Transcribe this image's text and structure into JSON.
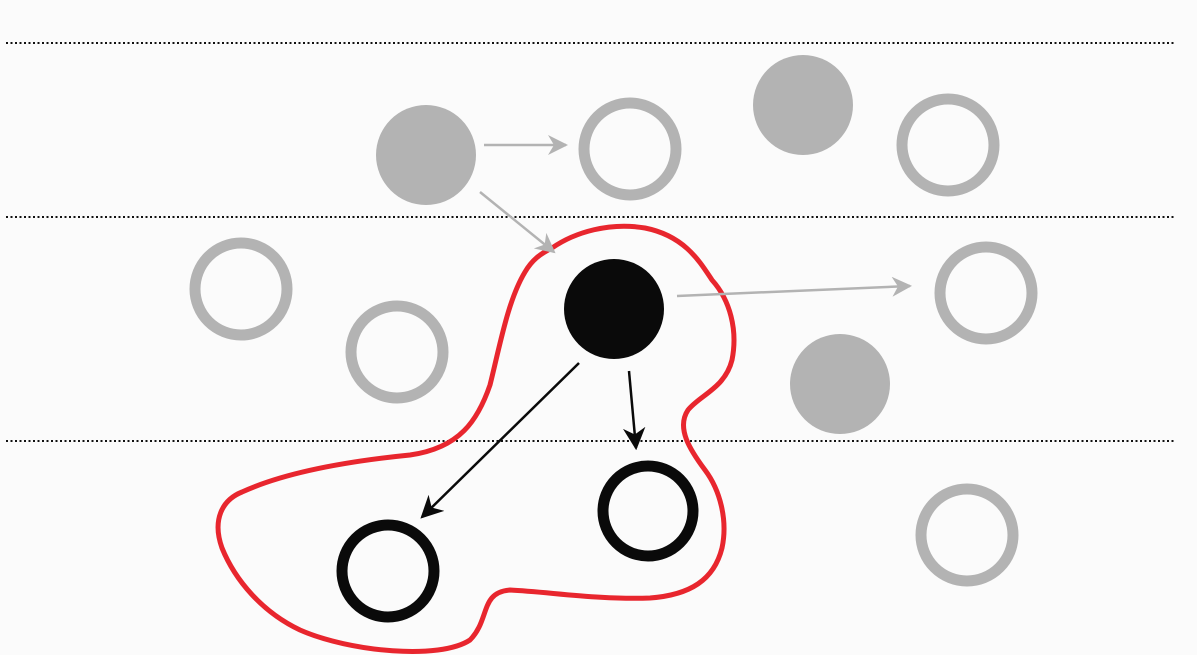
{
  "colors": {
    "background": "#fbfbfb",
    "dotted_line": "#111111",
    "inactive": "#b3b3b3",
    "active": "#0a0a0a",
    "highlight": "#e8262e"
  },
  "nodes": [
    {
      "id": "n1",
      "kind": "filled",
      "state": "inactive"
    },
    {
      "id": "n2",
      "kind": "hollow",
      "state": "inactive"
    },
    {
      "id": "n3",
      "kind": "filled",
      "state": "inactive"
    },
    {
      "id": "n4",
      "kind": "hollow",
      "state": "inactive"
    },
    {
      "id": "n5",
      "kind": "hollow",
      "state": "inactive"
    },
    {
      "id": "n6",
      "kind": "hollow",
      "state": "inactive"
    },
    {
      "id": "n7",
      "kind": "filled",
      "state": "active"
    },
    {
      "id": "n8",
      "kind": "hollow",
      "state": "inactive"
    },
    {
      "id": "n9",
      "kind": "filled",
      "state": "inactive"
    },
    {
      "id": "n10",
      "kind": "hollow",
      "state": "active"
    },
    {
      "id": "n11",
      "kind": "hollow",
      "state": "active"
    },
    {
      "id": "n12",
      "kind": "hollow",
      "state": "inactive"
    }
  ],
  "edges": [
    {
      "from": "n1",
      "to": "n2",
      "state": "inactive"
    },
    {
      "from": "n1",
      "to": "n7",
      "state": "inactive"
    },
    {
      "from": "n7",
      "to": "n8",
      "state": "inactive"
    },
    {
      "from": "n7",
      "to": "n10",
      "state": "active"
    },
    {
      "from": "n7",
      "to": "n11",
      "state": "active"
    }
  ],
  "highlight_region": {
    "encloses": [
      "n7",
      "n10",
      "n11"
    ]
  },
  "separators": 3
}
